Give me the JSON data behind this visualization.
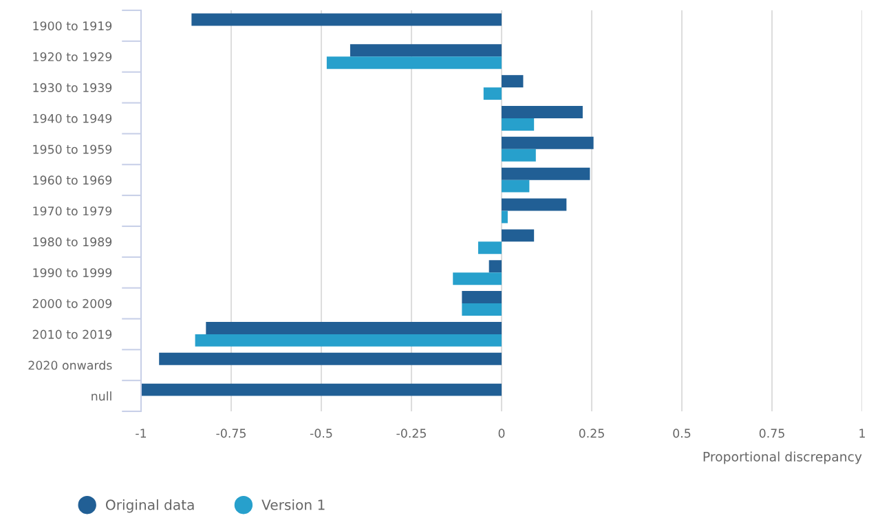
{
  "chart_data": {
    "type": "bar",
    "orientation": "horizontal",
    "xlabel": "Proportional discrepancy",
    "categories": [
      "1900 to 1919",
      "1920 to 1929",
      "1930 to 1939",
      "1940 to 1949",
      "1950 to 1959",
      "1960 to 1969",
      "1970 to 1979",
      "1980 to 1989",
      "1990 to 1999",
      "2000 to 2009",
      "2010 to 2019",
      "2020 onwards",
      "null"
    ],
    "series": [
      {
        "name": "Original data",
        "color": "#215f95",
        "values": [
          -0.86,
          -0.42,
          0.06,
          0.225,
          0.255,
          0.245,
          0.18,
          0.09,
          -0.035,
          -0.11,
          -0.82,
          -0.95,
          -1.0
        ]
      },
      {
        "name": "Version 1",
        "color": "#27a0cc",
        "values": [
          null,
          -0.485,
          -0.05,
          0.09,
          0.095,
          0.077,
          0.017,
          -0.065,
          -0.135,
          -0.11,
          -0.85,
          null,
          null
        ]
      }
    ],
    "xlim": [
      -1,
      1
    ],
    "xticks": [
      -1,
      -0.75,
      -0.5,
      -0.25,
      0,
      0.25,
      0.5,
      0.75,
      1
    ],
    "grid": "x",
    "legend": "bottom left"
  }
}
